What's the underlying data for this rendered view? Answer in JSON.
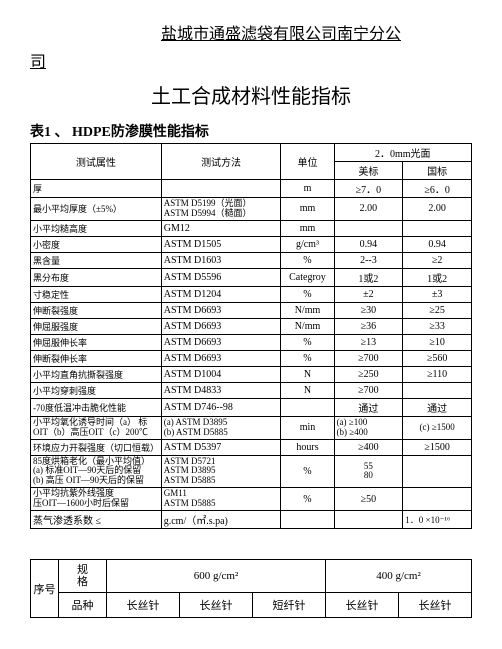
{
  "company_line1": "盐城市通盛滤袋有限公司南宁分公",
  "company_tail": "司",
  "main_title": "土工合成材料性能指标",
  "table1_caption": "表1 、 HDPE防渗膜性能指标",
  "headers": {
    "attr": "测试属性",
    "method": "测试方法",
    "unit": "单位",
    "spec_group": "2．0mm光面",
    "us": "美标",
    "cn": "国标"
  },
  "rows": [
    {
      "attr": "厚",
      "method": "",
      "unit": "m",
      "us": "≥7．0",
      "cn": "≥6．0"
    },
    {
      "attr": "最小平均厚度（±5%）",
      "method": "ASTM D5199（光面）\nASTM D5994（糙面）",
      "unit": "mm",
      "us": "2.00",
      "cn": "2.00"
    },
    {
      "attr": "小平均糙高度",
      "method": "GM12",
      "unit": "mm",
      "us": "",
      "cn": ""
    },
    {
      "attr": "小密度",
      "method": "ASTM D1505",
      "unit": "g/cm³",
      "us": "0.94",
      "cn": "0.94"
    },
    {
      "attr": "黑含量",
      "method": "ASTM D1603",
      "unit": "%",
      "us": "2--3",
      "cn": "≥2"
    },
    {
      "attr": "黑分布度",
      "method": "ASTM D5596",
      "unit": "Categroy",
      "us": "1或2",
      "cn": "1或2"
    },
    {
      "attr": "寸稳定性",
      "method": "ASTM D1204",
      "unit": "%",
      "us": "±2",
      "cn": "±3"
    },
    {
      "attr": "伸断裂强度",
      "method": "ASTM D6693",
      "unit": "N/mm",
      "us": "≥30",
      "cn": "≥25"
    },
    {
      "attr": "伸屈服强度",
      "method": "ASTM D6693",
      "unit": "N/mm",
      "us": "≥36",
      "cn": "≥33"
    },
    {
      "attr": "伸屈服伸长率",
      "method": "ASTM D6693",
      "unit": "%",
      "us": "≥13",
      "cn": "≥10"
    },
    {
      "attr": "伸断裂伸长率",
      "method": "ASTM D6693",
      "unit": "%",
      "us": "≥700",
      "cn": "≥560"
    },
    {
      "attr": "小平均直角抗撕裂强度",
      "method": "ASTM D1004",
      "unit": "N",
      "us": "≥250",
      "cn": "≥110"
    },
    {
      "attr": "小平均穿刺强度",
      "method": "ASTM D4833",
      "unit": "N",
      "us": "≥700",
      "cn": ""
    },
    {
      "attr": "-70度低温冲击脆化性能",
      "method": "ASTM D746--98",
      "unit": "",
      "us": "通过",
      "cn": "通过"
    }
  ],
  "row_oit": {
    "attr": "小平均氧化诱导时间（a）  标\nOIT（b）高压OIT（c）200℃",
    "method": "(a) ASTM D3895\n(b) ASTM D5885",
    "unit": "min",
    "us": "(a) ≥100\n(b) ≥400",
    "cn": "(c) ≥1500"
  },
  "row_ecr": {
    "attr": "环境应力开裂强度（切口恒载）",
    "method": "ASTM D5397",
    "unit": "hours",
    "us": "≥400",
    "cn": "≥1500"
  },
  "row_oven": {
    "attr": "85度烘箱老化（最小平均值）\n(a) 标准OIT—90天后的保留\n(b) 高压 OIT—90天后的保留",
    "method": "ASTM D5721\nASTM D3895\nASTM D5885",
    "unit": "%",
    "us": "55\n80",
    "cn": ""
  },
  "row_uv": {
    "attr": "小平均抗紫外线强度\n压OIT—1600小时后保留",
    "method": "GM11\nASTM D5885",
    "unit": "%",
    "us": "≥50",
    "cn": ""
  },
  "row_perm": {
    "attr": "蒸气渗透系数    ≤",
    "method": "g.cm/（㎡.s.pa)",
    "unit": "",
    "us": "",
    "cn": "1．0 ×10⁻¹⁶"
  },
  "table2": {
    "seq": "序号",
    "spec": "规\n格",
    "weight1": "600 g/cm²",
    "weight2": "400 g/cm²",
    "product": "品种",
    "c1": "长丝针",
    "c2": "长丝针",
    "c3": "短纤针",
    "c4": "长丝针",
    "c5": "长丝针"
  }
}
